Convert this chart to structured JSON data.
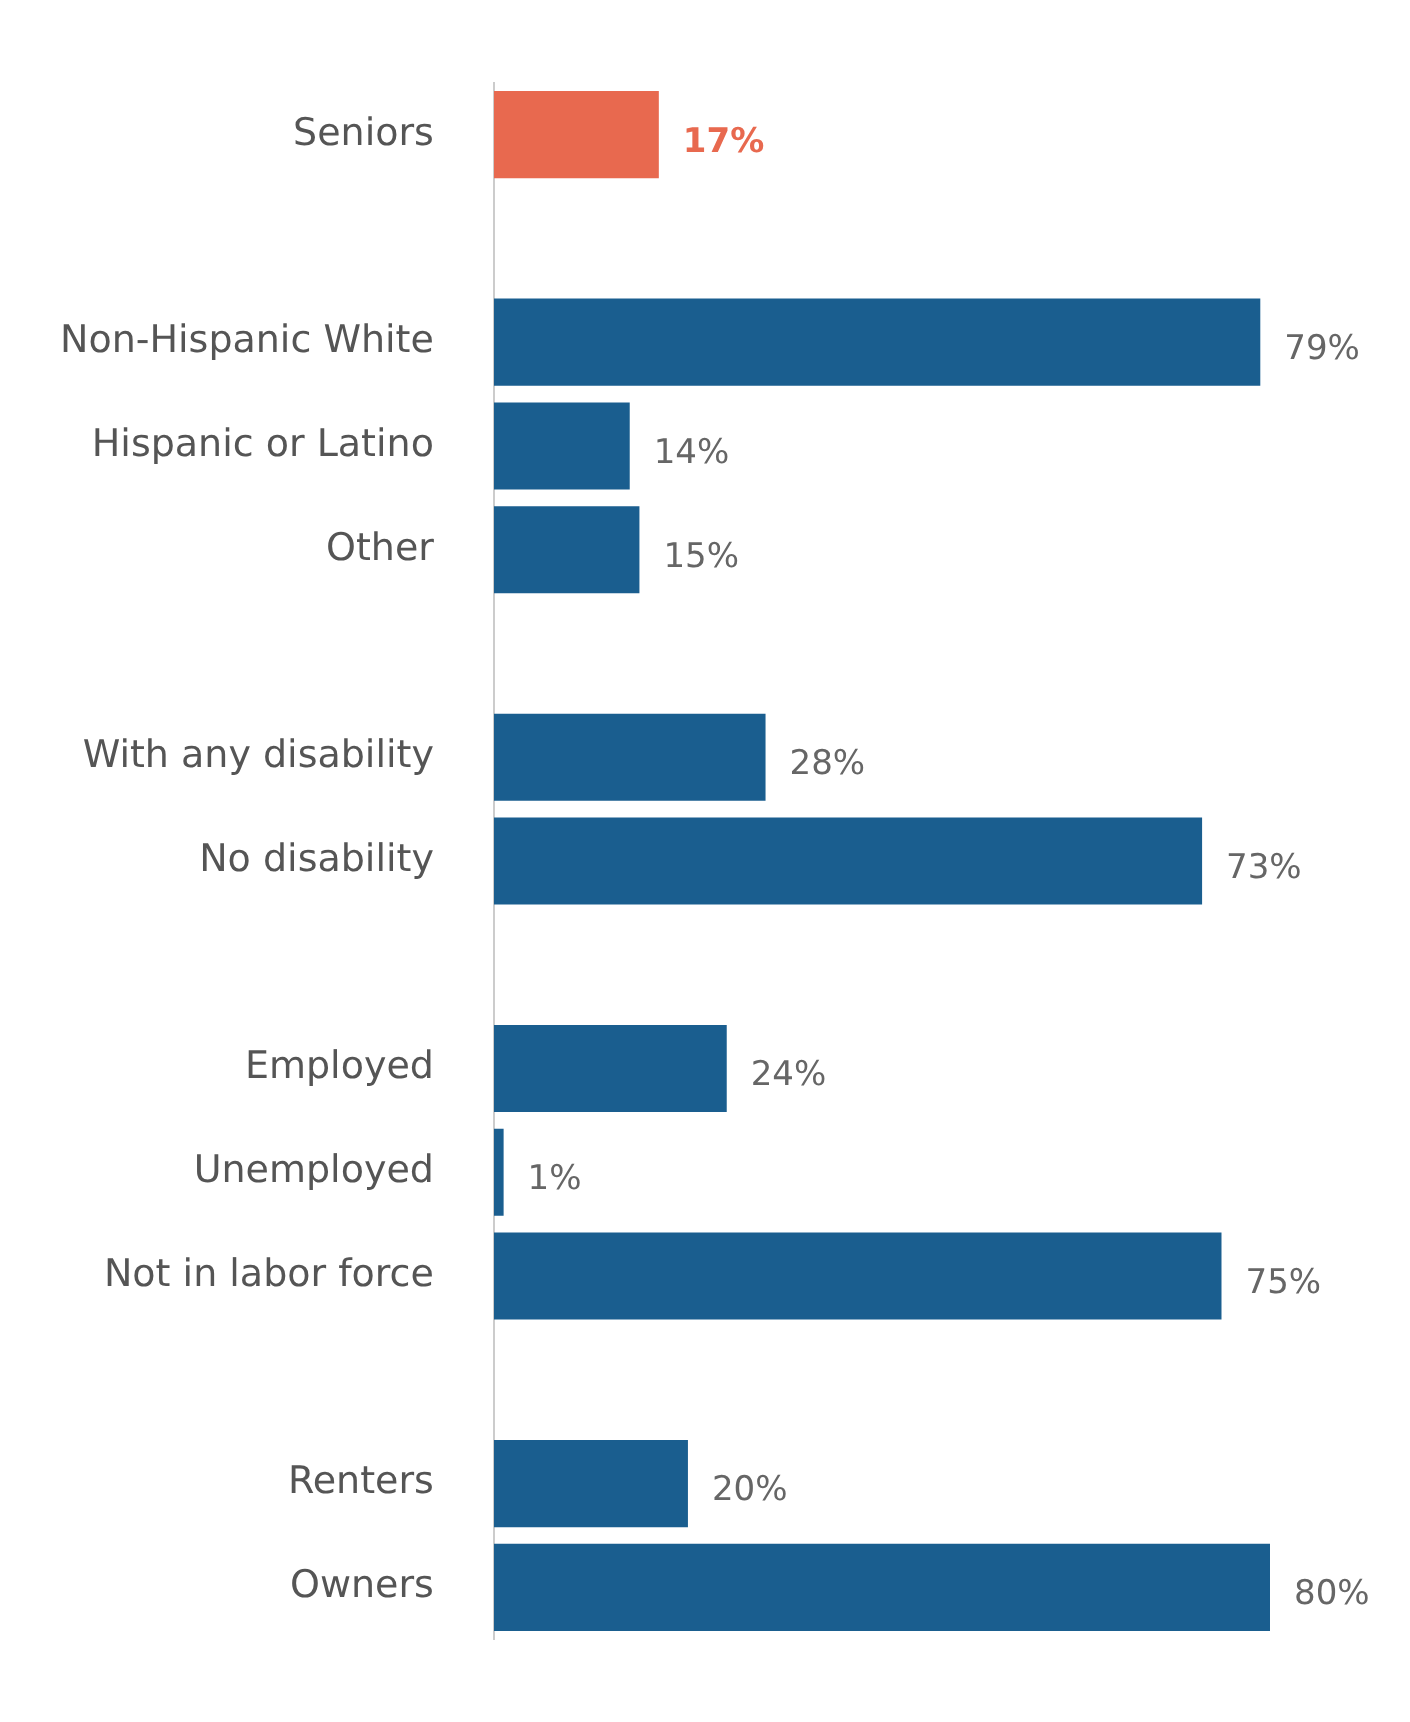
{
  "chart_data": {
    "type": "bar",
    "orientation": "horizontal",
    "categories": [
      "Seniors",
      null,
      "Non-Hispanic White",
      "Hispanic or Latino",
      "Other",
      null,
      "With any disability",
      "No disability",
      null,
      "Employed",
      "Unemployed",
      "Not in labor force",
      null,
      "Renters",
      "Owners"
    ],
    "values": [
      17,
      null,
      79,
      14,
      15,
      null,
      28,
      73,
      null,
      24,
      1,
      75,
      null,
      20,
      80
    ],
    "value_labels": [
      "17%",
      null,
      "79%",
      "14%",
      "15%",
      null,
      "28%",
      "73%",
      null,
      "24%",
      "1%",
      "75%",
      null,
      "20%",
      "80%"
    ],
    "colors": [
      "#e8694f",
      null,
      "#1a5e8f",
      "#1a5e8f",
      "#1a5e8f",
      null,
      "#1a5e8f",
      "#1a5e8f",
      null,
      "#1a5e8f",
      "#1a5e8f",
      "#1a5e8f",
      null,
      "#1a5e8f",
      "#1a5e8f"
    ],
    "legend": false
  }
}
